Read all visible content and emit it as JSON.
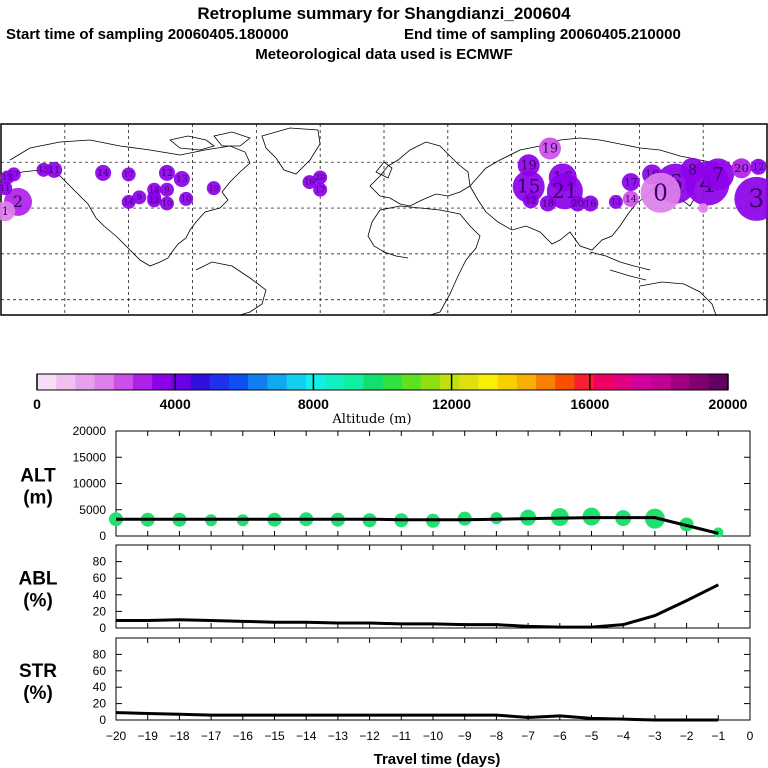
{
  "header": {
    "title": "Retroplume summary for Shangdianzi_200604",
    "start": "Start time of sampling 20060405.180000",
    "end": "End time of sampling 20060405.210000",
    "met": "Meteorological data used is ECMWF"
  },
  "colors": {
    "palette": [
      "#f8dcf8",
      "#f0c0f0",
      "#e6a0ee",
      "#dc80ea",
      "#cc50e8",
      "#b020e8",
      "#8c00ea",
      "#6a00e8",
      "#3010e0",
      "#2030ee",
      "#1050f2",
      "#1080f0",
      "#10a8f0",
      "#10d0f0",
      "#10f0e8",
      "#10f0c0",
      "#10f0a0",
      "#10e070",
      "#30e040",
      "#60e020",
      "#90e010",
      "#c0e010",
      "#e0e010",
      "#f8f000",
      "#f8d000",
      "#f8b000",
      "#f88000",
      "#f85000",
      "#f82030",
      "#f00060",
      "#e00080",
      "#d000a0",
      "#c00090",
      "#a00080",
      "#800070",
      "#600060"
    ],
    "plume_green": "#20e070",
    "line": "#000000"
  },
  "chart_data": [
    {
      "type": "scatter-map",
      "name": "retroplume-map",
      "projection": "equirectangular",
      "lon_range": [
        -180,
        180
      ],
      "lat_range": [
        -40,
        85
      ],
      "gridlines_lon": [
        -150,
        -120,
        -90,
        -60,
        -30,
        0,
        30,
        60,
        90,
        120,
        150
      ],
      "gridlines_lat": [
        -30,
        0,
        30,
        60
      ],
      "points": [
        {
          "lon": 78,
          "lat": 69,
          "day": "19",
          "color": "#cc50e8",
          "size": 11
        },
        {
          "lon": 68,
          "lat": 58,
          "day": "19",
          "color": "#8c00ea",
          "size": 11
        },
        {
          "lon": 68,
          "lat": 44,
          "day": "15",
          "color": "#8c00ea",
          "size": 16
        },
        {
          "lon": 84,
          "lat": 50,
          "day": "16",
          "color": "#8c00ea",
          "size": 14
        },
        {
          "lon": 85,
          "lat": 41,
          "day": "21",
          "color": "#8c00ea",
          "size": 18
        },
        {
          "lon": 69,
          "lat": 35,
          "day": "12",
          "color": "#8c00ea",
          "size": 8
        },
        {
          "lon": 77,
          "lat": 33,
          "day": "18",
          "color": "#8c00ea",
          "size": 8
        },
        {
          "lon": 91,
          "lat": 33,
          "day": "20",
          "color": "#8c00ea",
          "size": 8
        },
        {
          "lon": 97,
          "lat": 33,
          "day": "16",
          "color": "#8c00ea",
          "size": 8
        },
        {
          "lon": 109,
          "lat": 34,
          "day": "13",
          "color": "#8c00ea",
          "size": 7
        },
        {
          "lon": 116,
          "lat": 36,
          "day": "14",
          "color": "#cc50e8",
          "size": 8
        },
        {
          "lon": 116,
          "lat": 47,
          "day": "17",
          "color": "#8c00ea",
          "size": 9
        },
        {
          "lon": 126,
          "lat": 52,
          "day": "10",
          "color": "#8c00ea",
          "size": 10
        },
        {
          "lon": 137,
          "lat": 46,
          "day": "6",
          "color": "#8c00ea",
          "size": 20
        },
        {
          "lon": 130,
          "lat": 40,
          "day": "0",
          "color": "#dc80ea",
          "size": 20
        },
        {
          "lon": 152,
          "lat": 46,
          "day": "4",
          "color": "#8c00ea",
          "size": 22
        },
        {
          "lon": 157,
          "lat": 52,
          "day": "7",
          "color": "#8c00ea",
          "size": 16
        },
        {
          "lon": 145,
          "lat": 55,
          "day": "8",
          "color": "#8c00ea",
          "size": 12
        },
        {
          "lon": 168,
          "lat": 56,
          "day": "20",
          "color": "#b020e8",
          "size": 10
        },
        {
          "lon": 175,
          "lat": 36,
          "day": "3",
          "color": "#8c00ea",
          "size": 22
        },
        {
          "lon": 188,
          "lat": 34,
          "day": "2",
          "color": "#b020e8",
          "size": 14
        },
        {
          "lon": 182,
          "lat": 28,
          "day": "1",
          "color": "#dc80ea",
          "size": 10
        },
        {
          "lon": 176,
          "lat": 57,
          "day": "12",
          "color": "#8c00ea",
          "size": 8
        },
        {
          "lon": 186,
          "lat": 52,
          "day": "17",
          "color": "#8c00ea",
          "size": 7
        },
        {
          "lon": 200,
          "lat": 55,
          "day": "15",
          "color": "#8c00ea",
          "size": 7
        },
        {
          "lon": 228,
          "lat": 53,
          "day": "14",
          "color": "#8c00ea",
          "size": 8
        },
        {
          "lon": 258,
          "lat": 53,
          "day": "12",
          "color": "#8c00ea",
          "size": 8
        },
        {
          "lon": 265,
          "lat": 49,
          "day": "13",
          "color": "#8c00ea",
          "size": 8
        },
        {
          "lon": 258,
          "lat": 42,
          "day": "9",
          "color": "#8c00ea",
          "size": 7
        },
        {
          "lon": 252,
          "lat": 37,
          "day": "11",
          "color": "#8c00ea",
          "size": 7
        },
        {
          "lon": 245,
          "lat": 37,
          "day": "9",
          "color": "#8c00ea",
          "size": 7
        },
        {
          "lon": 240,
          "lat": 34,
          "day": "14",
          "color": "#8c00ea",
          "size": 7
        },
        {
          "lon": 252,
          "lat": 35,
          "day": "12",
          "color": "#8c00ea",
          "size": 7
        },
        {
          "lon": 258,
          "lat": 33,
          "day": "10",
          "color": "#8c00ea",
          "size": 7
        },
        {
          "lon": 267,
          "lat": 36,
          "day": "10",
          "color": "#8c00ea",
          "size": 7
        },
        {
          "lon": -155,
          "lat": 55,
          "day": "11",
          "color": "#8c00ea",
          "size": 8
        },
        {
          "lon": -120,
          "lat": 52,
          "day": "17",
          "color": "#8c00ea",
          "size": 7
        },
        {
          "lon": -177,
          "lat": 50,
          "day": "13",
          "color": "#8c00ea",
          "size": 7
        },
        {
          "lon": -178,
          "lat": 43,
          "day": "11",
          "color": "#8c00ea",
          "size": 7
        },
        {
          "lon": -35,
          "lat": 47,
          "day": "16",
          "color": "#8c00ea",
          "size": 7
        },
        {
          "lon": -30,
          "lat": 50,
          "day": "20",
          "color": "#8c00ea",
          "size": 7
        },
        {
          "lon": -30,
          "lat": 42,
          "day": "17",
          "color": "#8c00ea",
          "size": 7
        },
        {
          "lon": -108,
          "lat": 42,
          "day": "18",
          "color": "#8c00ea",
          "size": 7
        },
        {
          "lon": -80,
          "lat": 43,
          "day": "19",
          "color": "#8c00ea",
          "size": 7
        },
        {
          "lon": 150,
          "lat": 30,
          "day": "",
          "color": "#dc80ea",
          "size": 5
        }
      ]
    },
    {
      "type": "colorbar",
      "name": "altitude-colorbar",
      "min": 0,
      "max": 20000,
      "ticks": [
        "0",
        "4000",
        "8000",
        "12000",
        "16000",
        "20000"
      ],
      "label": "Altitude (m)"
    },
    {
      "type": "line",
      "name": "alt-panel",
      "ylabel_line1": "ALT",
      "ylabel_line2": "(m)",
      "ylim": [
        0,
        20000
      ],
      "yticks": [
        "0",
        "5000",
        "10000",
        "15000",
        "20000"
      ],
      "x": [
        -20,
        -19,
        -18,
        -17,
        -16,
        -15,
        -14,
        -13,
        -12,
        -11,
        -10,
        -9,
        -8,
        -7,
        -6,
        -5,
        -4,
        -3,
        -2,
        -1
      ],
      "values": [
        3200,
        3200,
        3200,
        3200,
        3200,
        3200,
        3200,
        3200,
        3200,
        3100,
        3100,
        3100,
        3200,
        3300,
        3400,
        3500,
        3500,
        3500,
        2000,
        500
      ],
      "plume_points": [
        {
          "x": -20,
          "y": 3200,
          "size": 7
        },
        {
          "x": -19,
          "y": 3100,
          "size": 7
        },
        {
          "x": -18,
          "y": 3100,
          "size": 7
        },
        {
          "x": -17,
          "y": 3000,
          "size": 6
        },
        {
          "x": -16,
          "y": 3000,
          "size": 6
        },
        {
          "x": -15,
          "y": 3100,
          "size": 7
        },
        {
          "x": -14,
          "y": 3200,
          "size": 7
        },
        {
          "x": -13,
          "y": 3100,
          "size": 7
        },
        {
          "x": -12,
          "y": 3000,
          "size": 7
        },
        {
          "x": -11,
          "y": 3000,
          "size": 7
        },
        {
          "x": -10,
          "y": 2900,
          "size": 7
        },
        {
          "x": -9,
          "y": 3300,
          "size": 7
        },
        {
          "x": -8,
          "y": 3400,
          "size": 6
        },
        {
          "x": -7,
          "y": 3500,
          "size": 8
        },
        {
          "x": -6,
          "y": 3600,
          "size": 9
        },
        {
          "x": -5,
          "y": 3700,
          "size": 9
        },
        {
          "x": -4,
          "y": 3400,
          "size": 8
        },
        {
          "x": -3,
          "y": 3300,
          "size": 10
        },
        {
          "x": -2,
          "y": 2200,
          "size": 7
        },
        {
          "x": -1,
          "y": 700,
          "size": 5
        }
      ]
    },
    {
      "type": "line",
      "name": "abl-panel",
      "ylabel_line1": "ABL",
      "ylabel_line2": "(%)",
      "ylim": [
        0,
        100
      ],
      "yticks": [
        "0",
        "20",
        "40",
        "60",
        "80"
      ],
      "x": [
        -20,
        -19,
        -18,
        -17,
        -16,
        -15,
        -14,
        -13,
        -12,
        -11,
        -10,
        -9,
        -8,
        -7,
        -6,
        -5,
        -4,
        -3,
        -2,
        -1
      ],
      "values": [
        9,
        9,
        10,
        9,
        8,
        7,
        7,
        6,
        6,
        5,
        5,
        4,
        4,
        2,
        1,
        1,
        4,
        15,
        33,
        52
      ]
    },
    {
      "type": "line",
      "name": "str-panel",
      "ylabel_line1": "STR",
      "ylabel_line2": "(%)",
      "ylim": [
        0,
        100
      ],
      "yticks": [
        "0",
        "20",
        "40",
        "60",
        "80"
      ],
      "xticks": [
        "−20",
        "−19",
        "−18",
        "−17",
        "−16",
        "−15",
        "−14",
        "−13",
        "−12",
        "−11",
        "−10",
        "−9",
        "−8",
        "−7",
        "−6",
        "−5",
        "−4",
        "−3",
        "−2",
        "−1",
        "0"
      ],
      "xlabel": "Travel time (days)",
      "x": [
        -20,
        -19,
        -18,
        -17,
        -16,
        -15,
        -14,
        -13,
        -12,
        -11,
        -10,
        -9,
        -8,
        -7,
        -6,
        -5,
        -4,
        -3,
        -2,
        -1
      ],
      "values": [
        9,
        8,
        7,
        6,
        6,
        6,
        6,
        6,
        6,
        6,
        6,
        6,
        6,
        3,
        5,
        2,
        1,
        0,
        0,
        0
      ]
    }
  ]
}
